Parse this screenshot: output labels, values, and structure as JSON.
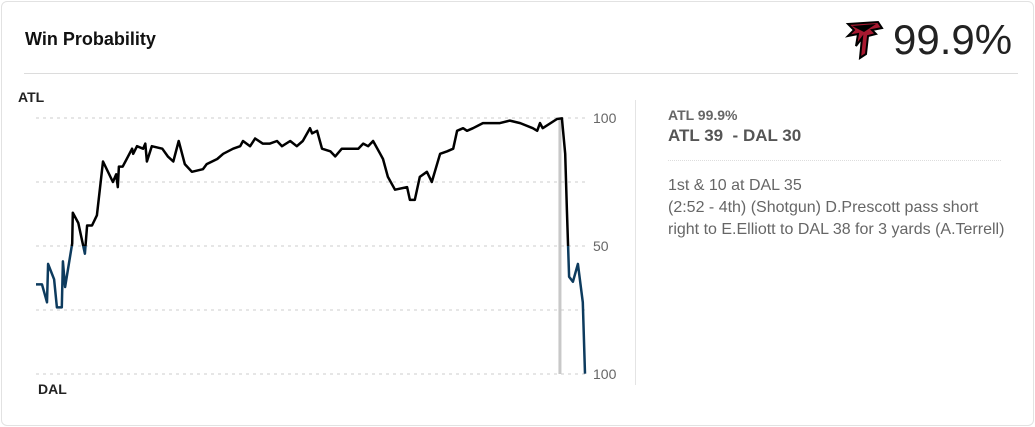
{
  "header": {
    "title": "Win Probability",
    "team_logo": "atlanta-falcons-logo",
    "win_pct": "99.9%"
  },
  "chart_data": {
    "type": "line",
    "title": "",
    "top_label": "ATL",
    "bottom_label": "DAL",
    "y_ticks": [
      {
        "value": 100,
        "label": "100"
      },
      {
        "value": 50,
        "label": "50"
      },
      {
        "value": 0,
        "label": "100"
      }
    ],
    "ylim": [
      0,
      100
    ],
    "gridlines": [
      100,
      75,
      50,
      25,
      0
    ],
    "grid": true,
    "x_unit": "game progress (%)",
    "colors": {
      "atl_favored": "#000000",
      "dal_favored": "#0d3b5e",
      "selected_marker": "#c8c8c8",
      "grid": "#cccccc"
    },
    "selected_x": 95.8,
    "series": [
      {
        "points": [
          [
            0,
            35
          ],
          [
            1.1,
            35
          ],
          [
            2.0,
            28
          ],
          [
            2.2,
            43
          ],
          [
            3.3,
            37
          ],
          [
            3.8,
            26
          ],
          [
            4.7,
            26
          ],
          [
            4.9,
            44
          ],
          [
            5.3,
            34
          ],
          [
            6.6,
            51
          ],
          [
            6.7,
            63
          ],
          [
            7.7,
            59
          ],
          [
            8.9,
            47
          ],
          [
            9.3,
            58
          ],
          [
            10.2,
            58
          ],
          [
            11.1,
            62
          ],
          [
            12.2,
            83
          ],
          [
            14.0,
            75
          ],
          [
            14.6,
            78
          ],
          [
            14.9,
            73
          ],
          [
            15.1,
            81
          ],
          [
            15.8,
            81
          ],
          [
            17.5,
            88
          ],
          [
            17.7,
            86
          ],
          [
            18.4,
            89
          ],
          [
            19.5,
            88
          ],
          [
            19.9,
            90
          ],
          [
            20.2,
            83
          ],
          [
            21.1,
            89
          ],
          [
            23.0,
            88
          ],
          [
            24.0,
            85
          ],
          [
            25.0,
            83
          ],
          [
            26.0,
            91
          ],
          [
            27.1,
            82
          ],
          [
            28.4,
            79
          ],
          [
            30.4,
            80
          ],
          [
            31.1,
            82
          ],
          [
            33.0,
            84
          ],
          [
            34.1,
            86
          ],
          [
            35.9,
            88
          ],
          [
            37.2,
            89
          ],
          [
            37.7,
            91
          ],
          [
            39.0,
            89
          ],
          [
            39.9,
            92
          ],
          [
            41.3,
            90
          ],
          [
            42.6,
            90
          ],
          [
            43.9,
            91
          ],
          [
            44.8,
            89
          ],
          [
            46.3,
            91
          ],
          [
            47.5,
            89
          ],
          [
            48.6,
            91
          ],
          [
            49.9,
            96
          ],
          [
            50.3,
            94
          ],
          [
            51.2,
            95
          ],
          [
            52.1,
            88
          ],
          [
            53.6,
            87
          ],
          [
            54.5,
            85
          ],
          [
            55.7,
            88
          ],
          [
            58.7,
            88
          ],
          [
            59.6,
            90
          ],
          [
            60.5,
            89
          ],
          [
            61.4,
            91
          ],
          [
            62.7,
            86
          ],
          [
            63.2,
            84
          ],
          [
            64.1,
            77
          ],
          [
            65.4,
            72
          ],
          [
            67.6,
            73
          ],
          [
            68.1,
            68
          ],
          [
            69.0,
            68
          ],
          [
            69.9,
            77
          ],
          [
            71.2,
            79
          ],
          [
            72.1,
            75
          ],
          [
            73.6,
            86
          ],
          [
            74.9,
            87
          ],
          [
            76.0,
            88
          ],
          [
            76.7,
            95
          ],
          [
            77.8,
            96
          ],
          [
            78.5,
            95
          ],
          [
            79.6,
            96
          ],
          [
            81.4,
            98
          ],
          [
            84.5,
            98
          ],
          [
            86.3,
            99
          ],
          [
            88.2,
            98
          ],
          [
            90.5,
            96
          ],
          [
            91.3,
            95
          ],
          [
            91.8,
            98
          ],
          [
            92.3,
            96
          ],
          [
            94.9,
            99.6
          ],
          [
            95.8,
            99.9
          ],
          [
            96.4,
            86
          ],
          [
            96.7,
            64
          ],
          [
            96.9,
            51
          ],
          [
            97.1,
            38
          ],
          [
            97.8,
            36
          ],
          [
            98.7,
            43
          ],
          [
            99.6,
            28
          ],
          [
            100,
            0.1
          ]
        ]
      }
    ]
  },
  "play": {
    "win_prob": "ATL 99.9%",
    "score": "ATL 39  - DAL 30",
    "down_distance": "1st & 10 at DAL 35",
    "description": "(2:52 - 4th) (Shotgun) D.Prescott pass short right to E.Elliott to DAL 38 for 3 yards (A.Terrell)"
  }
}
